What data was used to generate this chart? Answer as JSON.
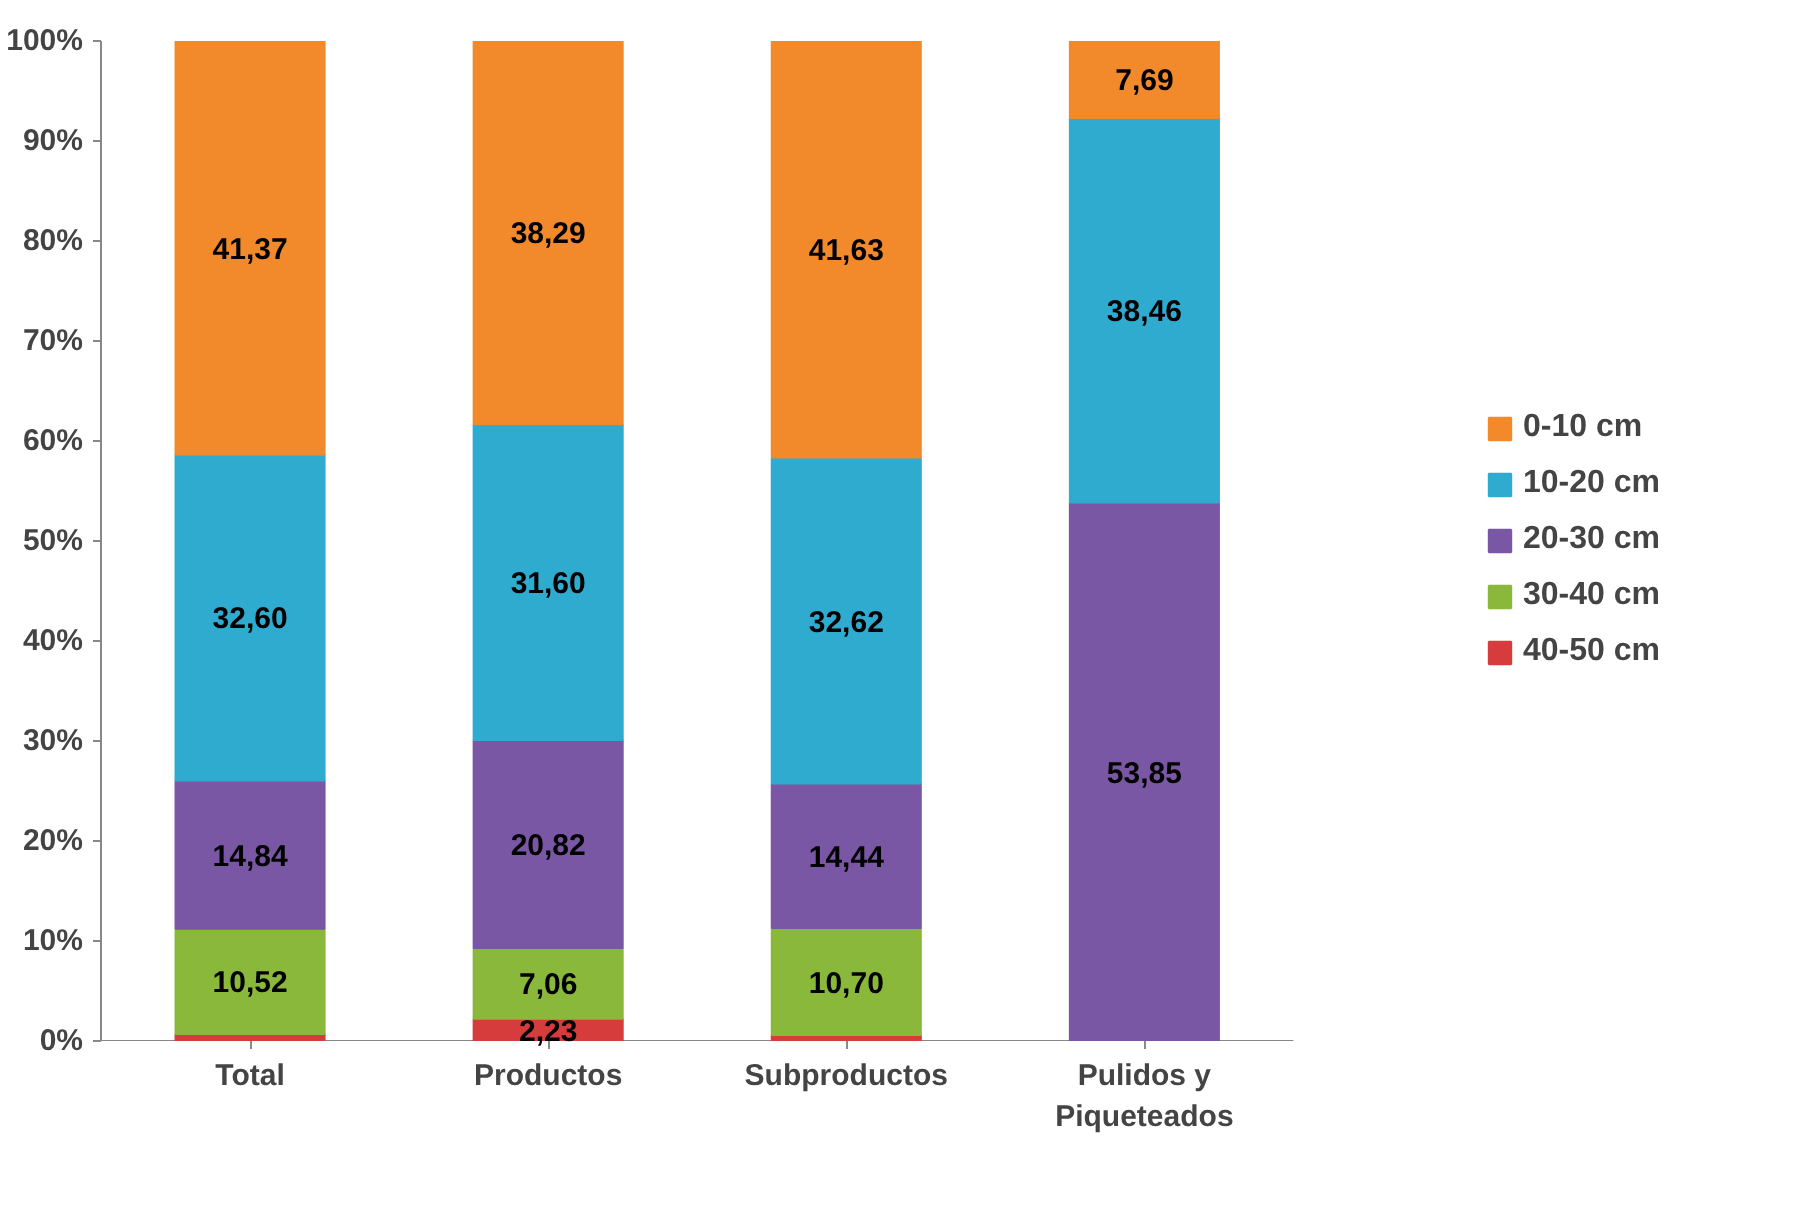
{
  "chart_data": {
    "type": "bar",
    "stacked": true,
    "categories": [
      "Total",
      "Productos",
      "Subproductos",
      "Pulidos y Piqueteados"
    ],
    "series": [
      {
        "name": "40-50 cm",
        "color": "#d63c3c",
        "values": [
          0.7,
          2.23,
          0.6,
          null
        ],
        "value_labels": [
          null,
          "2,23",
          null,
          null
        ]
      },
      {
        "name": "30-40 cm",
        "color": "#8ab83a",
        "values": [
          10.52,
          7.06,
          10.7,
          null
        ],
        "value_labels": [
          "10,52",
          "7,06",
          "10,70",
          null
        ]
      },
      {
        "name": "20-30 cm",
        "color": "#7a57a4",
        "values": [
          14.84,
          20.82,
          14.44,
          53.85
        ],
        "value_labels": [
          "14,84",
          "20,82",
          "14,44",
          "53,85"
        ]
      },
      {
        "name": "10-20 cm",
        "color": "#2fabd0",
        "values": [
          32.6,
          31.6,
          32.62,
          38.46
        ],
        "value_labels": [
          "32,60",
          "31,60",
          "32,62",
          "38,46"
        ]
      },
      {
        "name": "0-10 cm",
        "color": "#f28a2c",
        "values": [
          41.37,
          38.29,
          41.63,
          7.69
        ],
        "value_labels": [
          "41,37",
          "38,29",
          "41,63",
          "7,69"
        ]
      }
    ],
    "ylim": [
      0,
      100
    ],
    "yticks": [
      {
        "value": 0,
        "label": "0%"
      },
      {
        "value": 10,
        "label": "10%"
      },
      {
        "value": 20,
        "label": "20%"
      },
      {
        "value": 30,
        "label": "30%"
      },
      {
        "value": 40,
        "label": "40%"
      },
      {
        "value": 50,
        "label": "50%"
      },
      {
        "value": 60,
        "label": "60%"
      },
      {
        "value": 70,
        "label": "70%"
      },
      {
        "value": 80,
        "label": "80%"
      },
      {
        "value": 90,
        "label": "90%"
      },
      {
        "value": 100,
        "label": "100%"
      }
    ],
    "legend": "right"
  }
}
